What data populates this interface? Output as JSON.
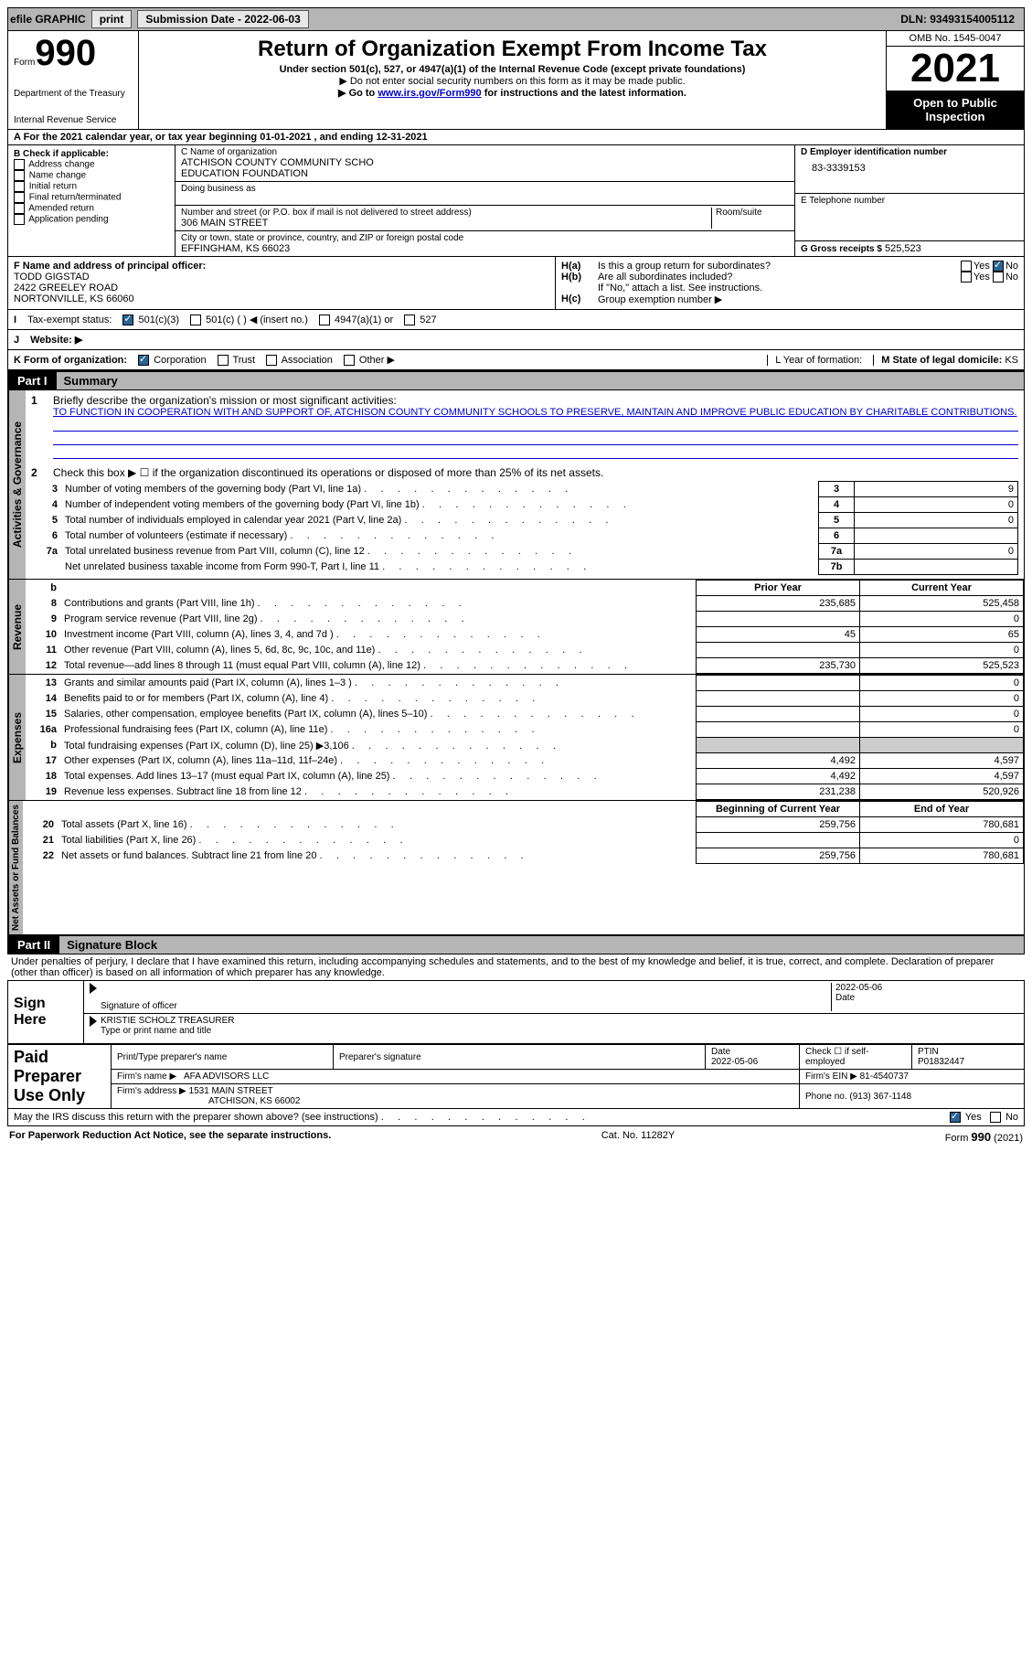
{
  "topbar": {
    "efile_label": "efile GRAPHIC",
    "print_btn": "print",
    "sub_date_label": "Submission Date - 2022-06-03",
    "dln": "DLN: 93493154005112"
  },
  "header": {
    "form_word": "Form",
    "form_num": "990",
    "dept": "Department of the Treasury",
    "irs": "Internal Revenue Service",
    "title": "Return of Organization Exempt From Income Tax",
    "sub1": "Under section 501(c), 527, or 4947(a)(1) of the Internal Revenue Code (except private foundations)",
    "sub2": "▶ Do not enter social security numbers on this form as it may be made public.",
    "sub3_pre": "▶ Go to ",
    "sub3_link": "www.irs.gov/Form990",
    "sub3_post": " for instructions and the latest information.",
    "omb": "OMB No. 1545-0047",
    "year": "2021",
    "otp": "Open to Public Inspection"
  },
  "section_a": {
    "text_pre": "A For the 2021 calendar year, or tax year beginning ",
    "begin": "01-01-2021",
    "mid": "  , and ending ",
    "end": "12-31-2021"
  },
  "col_b": {
    "hdr": "B Check if applicable:",
    "items": [
      "Address change",
      "Name change",
      "Initial return",
      "Final return/terminated",
      "Amended return",
      "Application pending"
    ]
  },
  "col_c": {
    "name_lbl": "C Name of organization",
    "name1": "ATCHISON COUNTY COMMUNITY SCHO",
    "name2": "EDUCATION FOUNDATION",
    "dba_lbl": "Doing business as",
    "addr_lbl": "Number and street (or P.O. box if mail is not delivered to street address)",
    "room_lbl": "Room/suite",
    "addr": "306 MAIN STREET",
    "city_lbl": "City or town, state or province, country, and ZIP or foreign postal code",
    "city": "EFFINGHAM, KS  66023"
  },
  "col_d": {
    "ein_lbl": "D Employer identification number",
    "ein": "83-3339153",
    "phone_lbl": "E Telephone number",
    "receipts_lbl": "G Gross receipts $",
    "receipts": "525,523"
  },
  "row_f": {
    "lbl": "F  Name and address of principal officer:",
    "name": "TODD GIGSTAD",
    "addr1": "2422 GREELEY ROAD",
    "addr2": "NORTONVILLE, KS  66060"
  },
  "row_h": {
    "ha_lbl": "Is this a group return for subordinates?",
    "hb_lbl": "Are all subordinates included?",
    "hb_note": "If \"No,\" attach a list. See instructions.",
    "hc_lbl": "Group exemption number ▶",
    "yes": "Yes",
    "no": "No"
  },
  "row_i": {
    "lbl": "Tax-exempt status:",
    "opt1": "501(c)(3)",
    "opt2": "501(c) (  ) ◀ (insert no.)",
    "opt3": "4947(a)(1) or",
    "opt4": "527"
  },
  "row_j": {
    "lbl": "Website: ▶"
  },
  "row_k": {
    "lbl": "K Form of organization:",
    "opts": [
      "Corporation",
      "Trust",
      "Association",
      "Other ▶"
    ],
    "l_lbl": "L Year of formation:",
    "m_lbl": "M State of legal domicile: ",
    "m_val": "KS"
  },
  "part1": {
    "num": "Part I",
    "title": "Summary"
  },
  "summary": {
    "line1_lbl": "Briefly describe the organization's mission or most significant activities:",
    "mission": "TO FUNCTION IN COOPERATION WITH AND SUPPORT OF, ATCHISON COUNTY COMMUNITY SCHOOLS TO PRESERVE, MAINTAIN AND IMPROVE PUBLIC EDUCATION BY CHARITABLE CONTRIBUTIONS.",
    "line2_lbl": "Check this box ▶ ☐  if the organization discontinued its operations or disposed of more than 25% of its net assets.",
    "rows": [
      {
        "n": "3",
        "t": "Number of voting members of the governing body (Part VI, line 1a)",
        "box": "3",
        "v": "9"
      },
      {
        "n": "4",
        "t": "Number of independent voting members of the governing body (Part VI, line 1b)",
        "box": "4",
        "v": "0"
      },
      {
        "n": "5",
        "t": "Total number of individuals employed in calendar year 2021 (Part V, line 2a)",
        "box": "5",
        "v": "0"
      },
      {
        "n": "6",
        "t": "Total number of volunteers (estimate if necessary)",
        "box": "6",
        "v": ""
      },
      {
        "n": "7a",
        "t": "Total unrelated business revenue from Part VIII, column (C), line 12",
        "box": "7a",
        "v": "0"
      },
      {
        "n": "",
        "t": "Net unrelated business taxable income from Form 990-T, Part I, line 11",
        "box": "7b",
        "v": ""
      }
    ],
    "col_hdrs": {
      "prior": "Prior Year",
      "current": "Current Year"
    },
    "revenue": [
      {
        "n": "8",
        "t": "Contributions and grants (Part VIII, line 1h)",
        "p": "235,685",
        "c": "525,458"
      },
      {
        "n": "9",
        "t": "Program service revenue (Part VIII, line 2g)",
        "p": "",
        "c": "0"
      },
      {
        "n": "10",
        "t": "Investment income (Part VIII, column (A), lines 3, 4, and 7d )",
        "p": "45",
        "c": "65"
      },
      {
        "n": "11",
        "t": "Other revenue (Part VIII, column (A), lines 5, 6d, 8c, 9c, 10c, and 11e)",
        "p": "",
        "c": "0"
      },
      {
        "n": "12",
        "t": "Total revenue—add lines 8 through 11 (must equal Part VIII, column (A), line 12)",
        "p": "235,730",
        "c": "525,523"
      }
    ],
    "expenses": [
      {
        "n": "13",
        "t": "Grants and similar amounts paid (Part IX, column (A), lines 1–3 )",
        "p": "",
        "c": "0"
      },
      {
        "n": "14",
        "t": "Benefits paid to or for members (Part IX, column (A), line 4)",
        "p": "",
        "c": "0"
      },
      {
        "n": "15",
        "t": "Salaries, other compensation, employee benefits (Part IX, column (A), lines 5–10)",
        "p": "",
        "c": "0"
      },
      {
        "n": "16a",
        "t": "Professional fundraising fees (Part IX, column (A), line 11e)",
        "p": "",
        "c": "0"
      },
      {
        "n": "b",
        "t": "Total fundraising expenses (Part IX, column (D), line 25) ▶3,106",
        "p": "shade",
        "c": "shade"
      },
      {
        "n": "17",
        "t": "Other expenses (Part IX, column (A), lines 11a–11d, 11f–24e)",
        "p": "4,492",
        "c": "4,597"
      },
      {
        "n": "18",
        "t": "Total expenses. Add lines 13–17 (must equal Part IX, column (A), line 25)",
        "p": "4,492",
        "c": "4,597"
      },
      {
        "n": "19",
        "t": "Revenue less expenses. Subtract line 18 from line 12",
        "p": "231,238",
        "c": "520,926"
      }
    ],
    "net_hdrs": {
      "begin": "Beginning of Current Year",
      "end": "End of Year"
    },
    "netassets": [
      {
        "n": "20",
        "t": "Total assets (Part X, line 16)",
        "p": "259,756",
        "c": "780,681"
      },
      {
        "n": "21",
        "t": "Total liabilities (Part X, line 26)",
        "p": "",
        "c": "0"
      },
      {
        "n": "22",
        "t": "Net assets or fund balances. Subtract line 21 from line 20",
        "p": "259,756",
        "c": "780,681"
      }
    ],
    "vtabs": {
      "act": "Activities & Governance",
      "rev": "Revenue",
      "exp": "Expenses",
      "net": "Net Assets or Fund Balances"
    }
  },
  "part2": {
    "num": "Part II",
    "title": "Signature Block"
  },
  "sig": {
    "declaration": "Under penalties of perjury, I declare that I have examined this return, including accompanying schedules and statements, and to the best of my knowledge and belief, it is true, correct, and complete. Declaration of preparer (other than officer) is based on all information of which preparer has any knowledge.",
    "sign_here": "Sign Here",
    "sig_officer": "Signature of officer",
    "date_lbl": "Date",
    "date": "2022-05-06",
    "name_title": "KRISTIE SCHOLZ  TREASURER",
    "name_title_lbl": "Type or print name and title"
  },
  "paid": {
    "hdr": "Paid Preparer Use Only",
    "print_lbl": "Print/Type preparer's name",
    "sig_lbl": "Preparer's signature",
    "date_lbl": "Date",
    "date": "2022-05-06",
    "check_lbl": "Check ☐ if self-employed",
    "ptin_lbl": "PTIN",
    "ptin": "P01832447",
    "firm_name_lbl": "Firm's name    ▶",
    "firm_name": "AFA ADVISORS LLC",
    "firm_ein_lbl": "Firm's EIN ▶",
    "firm_ein": "81-4540737",
    "firm_addr_lbl": "Firm's address ▶",
    "firm_addr1": "1531 MAIN STREET",
    "firm_addr2": "ATCHISON, KS  66002",
    "phone_lbl": "Phone no.",
    "phone": "(913) 367-1148"
  },
  "footer": {
    "discuss": "May the IRS discuss this return with the preparer shown above? (see instructions)",
    "yes": "Yes",
    "no": "No",
    "paperwork": "For Paperwork Reduction Act Notice, see the separate instructions.",
    "cat": "Cat. No. 11282Y",
    "form": "Form 990 (2021)"
  }
}
